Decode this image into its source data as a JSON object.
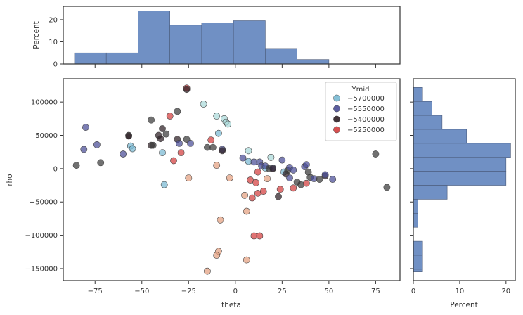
{
  "chart_data": {
    "type": "scatter",
    "title": "",
    "xlabel": "theta",
    "ylabel": "rho",
    "xlim": [
      -92,
      88
    ],
    "ylim": [
      -168000,
      135000
    ],
    "x_ticks": [
      -75,
      -50,
      -25,
      0,
      25,
      50,
      75
    ],
    "x_tick_labels": [
      "−75",
      "−50",
      "−25",
      "0",
      "25",
      "50",
      "75"
    ],
    "y_ticks": [
      -150000,
      -100000,
      -50000,
      0,
      50000,
      100000
    ],
    "y_tick_labels": [
      "−150000",
      "−100000",
      "−50000",
      "0",
      "50000",
      "100000"
    ],
    "grid": false,
    "legend": {
      "title": "Ymid",
      "placement": "top-right",
      "entries": [
        {
          "label": "−5700000",
          "color": "#78b9d3"
        },
        {
          "label": "−5550000",
          "color": "#4a4c95"
        },
        {
          "label": "−5400000",
          "color": "#2d1e24"
        },
        {
          "label": "−5250000",
          "color": "#d33d3d"
        }
      ]
    },
    "points": [
      [
        -85,
        5000,
        "#3a3a3a"
      ],
      [
        -81,
        29000,
        "#4a4c95"
      ],
      [
        -80,
        62000,
        "#4a4c95"
      ],
      [
        -74,
        36000,
        "#4a4c95"
      ],
      [
        -72,
        9000,
        "#3a3a3a"
      ],
      [
        -60,
        22000,
        "#4a4c95"
      ],
      [
        -57,
        50000,
        "#2d1e24"
      ],
      [
        -57,
        49000,
        "#2d1e24"
      ],
      [
        -56,
        34000,
        "#78b9d3"
      ],
      [
        -55,
        30000,
        "#78b9d3"
      ],
      [
        -45,
        73000,
        "#3a3a3a"
      ],
      [
        -45,
        35000,
        "#2d1e24"
      ],
      [
        -44,
        35000,
        "#3a3a3a"
      ],
      [
        -41,
        50000,
        "#2d1e24"
      ],
      [
        -40,
        45000,
        "#2d1e24"
      ],
      [
        -39,
        60000,
        "#2d1e24"
      ],
      [
        -39,
        24000,
        "#78b9d3"
      ],
      [
        -38,
        -24000,
        "#78b9d3"
      ],
      [
        -37,
        52000,
        "#3a3a3a"
      ],
      [
        -35,
        79000,
        "#d33d3d"
      ],
      [
        -33,
        12000,
        "#d33d3d"
      ],
      [
        -31,
        86000,
        "#3a3a3a"
      ],
      [
        -31,
        44000,
        "#2d1e24"
      ],
      [
        -30,
        38000,
        "#4a4c95"
      ],
      [
        -29,
        24000,
        "#d33d3d"
      ],
      [
        -26,
        121000,
        "#d33d3d"
      ],
      [
        -26,
        119000,
        "#2d1e24"
      ],
      [
        -26,
        44000,
        "#3a3a3a"
      ],
      [
        -25,
        -14000,
        "#e3a080"
      ],
      [
        -24,
        38000,
        "#4a4c95"
      ],
      [
        -17,
        97000,
        "#abd9d9"
      ],
      [
        -15,
        32000,
        "#3a3a3a"
      ],
      [
        -13,
        43000,
        "#d33d3d"
      ],
      [
        -12,
        32000,
        "#3a3a3a"
      ],
      [
        -10,
        79000,
        "#abd9d9"
      ],
      [
        -10,
        5000,
        "#e3a080"
      ],
      [
        -9,
        53000,
        "#78b9d3"
      ],
      [
        -8,
        -77000,
        "#e3a080"
      ],
      [
        -7,
        29000,
        "#4a4c95"
      ],
      [
        -7,
        27000,
        "#2d1e24"
      ],
      [
        -6,
        75000,
        "#abd9d9"
      ],
      [
        -5,
        70000,
        "#abd9d9"
      ],
      [
        -4,
        67000,
        "#abd9d9"
      ],
      [
        -3,
        -14000,
        "#e3a080"
      ],
      [
        -9,
        -124000,
        "#e3a080"
      ],
      [
        -10,
        -130000,
        "#e3a080"
      ],
      [
        -15,
        -154000,
        "#e3a080"
      ],
      [
        4,
        16000,
        "#4a4c95"
      ],
      [
        5,
        -40000,
        "#e3a080"
      ],
      [
        6,
        -64000,
        "#e3a080"
      ],
      [
        6,
        -137000,
        "#e3a080"
      ],
      [
        7,
        11000,
        "#78b9d3"
      ],
      [
        7,
        27000,
        "#abd9d9"
      ],
      [
        8,
        -17000,
        "#d33d3d"
      ],
      [
        9,
        -44000,
        "#d33d3d"
      ],
      [
        10,
        10000,
        "#4a4c95"
      ],
      [
        10,
        -101000,
        "#d33d3d"
      ],
      [
        11,
        -21000,
        "#d33d3d"
      ],
      [
        12,
        -5000,
        "#d33d3d"
      ],
      [
        12,
        -37000,
        "#d33d3d"
      ],
      [
        13,
        10000,
        "#4a4c95"
      ],
      [
        13,
        -101000,
        "#d33d3d"
      ],
      [
        14,
        4000,
        "#4a4c95"
      ],
      [
        15,
        -34000,
        "#d33d3d"
      ],
      [
        16,
        1000,
        "#78b9d3"
      ],
      [
        16,
        4000,
        "#4a4c95"
      ],
      [
        17,
        -15000,
        "#e3a080"
      ],
      [
        18,
        0,
        "#3a3a3a"
      ],
      [
        19,
        17000,
        "#abd9d9"
      ],
      [
        20,
        1000,
        "#4a4c95"
      ],
      [
        20,
        0,
        "#2d1e24"
      ],
      [
        23,
        -42000,
        "#2d1e24"
      ],
      [
        24,
        -31000,
        "#d33d3d"
      ],
      [
        25,
        13000,
        "#4a4c95"
      ],
      [
        26,
        -5000,
        "#78b9d3"
      ],
      [
        27,
        -8000,
        "#2d1e24"
      ],
      [
        28,
        -3000,
        "#3a3a3a"
      ],
      [
        29,
        -14000,
        "#4a4c95"
      ],
      [
        29,
        2000,
        "#4a4c95"
      ],
      [
        31,
        -2000,
        "#4a4c95"
      ],
      [
        31,
        -29000,
        "#d33d3d"
      ],
      [
        33,
        -20000,
        "#3a3a3a"
      ],
      [
        35,
        -24000,
        "#3a3a3a"
      ],
      [
        37,
        3000,
        "#4a4c95"
      ],
      [
        38,
        6000,
        "#4a4c95"
      ],
      [
        38,
        -22000,
        "#d33d3d"
      ],
      [
        39,
        -5000,
        "#3a3a3a"
      ],
      [
        40,
        -13000,
        "#3a3a3a"
      ],
      [
        42,
        -15000,
        "#4a4c95"
      ],
      [
        45,
        -16000,
        "#3a3a3a"
      ],
      [
        48,
        -11000,
        "#2d1e24"
      ],
      [
        48,
        -9000,
        "#4a4c95"
      ],
      [
        52,
        -16000,
        "#4a4c95"
      ],
      [
        75,
        22000,
        "#3a3a3a"
      ],
      [
        81,
        -28000,
        "#3a3a3a"
      ]
    ]
  },
  "top_hist": {
    "ylabel": "Percent",
    "ylim": [
      0,
      26
    ],
    "y_ticks": [
      0,
      10,
      20
    ],
    "y_tick_labels": [
      "0",
      "10",
      "20"
    ],
    "bins": [
      {
        "x0": -86,
        "x1": -69,
        "pct": 5
      },
      {
        "x0": -69,
        "x1": -52,
        "pct": 5
      },
      {
        "x0": -52,
        "x1": -35,
        "pct": 24
      },
      {
        "x0": -35,
        "x1": -18,
        "pct": 17.5
      },
      {
        "x0": -18,
        "x1": -1,
        "pct": 18.5
      },
      {
        "x0": -1,
        "x1": 16,
        "pct": 19.5
      },
      {
        "x0": 16,
        "x1": 33,
        "pct": 7
      },
      {
        "x0": 33,
        "x1": 50,
        "pct": 2
      }
    ]
  },
  "right_hist": {
    "xlabel": "Percent",
    "xlim": [
      0,
      22
    ],
    "x_ticks": [
      0,
      10,
      20
    ],
    "x_tick_labels": [
      "0",
      "10",
      "20"
    ],
    "bins": [
      {
        "y0": 101000,
        "y1": 122000,
        "pct": 2
      },
      {
        "y0": 80000,
        "y1": 101000,
        "pct": 4
      },
      {
        "y0": 59000,
        "y1": 80000,
        "pct": 6.2
      },
      {
        "y0": 38000,
        "y1": 59000,
        "pct": 11.5
      },
      {
        "y0": 17000,
        "y1": 38000,
        "pct": 21
      },
      {
        "y0": -4000,
        "y1": 17000,
        "pct": 20
      },
      {
        "y0": -25000,
        "y1": -4000,
        "pct": 20
      },
      {
        "y0": -46000,
        "y1": -25000,
        "pct": 7.3
      },
      {
        "y0": -67000,
        "y1": -46000,
        "pct": 1
      },
      {
        "y0": -88000,
        "y1": -67000,
        "pct": 1
      },
      {
        "y0": -109000,
        "y1": -88000,
        "pct": 0
      },
      {
        "y0": -130000,
        "y1": -109000,
        "pct": 2
      },
      {
        "y0": -151000,
        "y1": -130000,
        "pct": 2
      },
      {
        "y0": -155000,
        "y1": -151000,
        "pct": 2
      }
    ]
  },
  "colors": {
    "hist_fill": "#7090c4",
    "hist_edge": "#4a5a78",
    "axis": "#333333"
  }
}
